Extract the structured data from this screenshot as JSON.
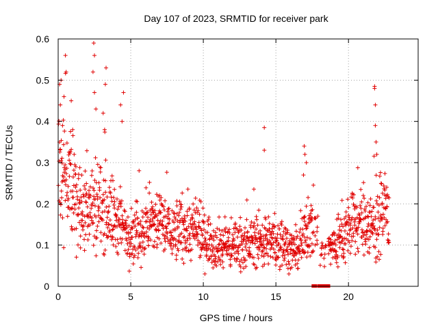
{
  "chart_data": {
    "type": "scatter",
    "title": "Day 107 of 2023, SRMTID for receiver park",
    "xlabel": "GPS time / hours",
    "ylabel": "SRMTID / TECUs",
    "xlim": [
      0,
      24.8
    ],
    "ylim": [
      0,
      0.6
    ],
    "x_ticks": [
      0,
      5,
      10,
      15,
      20
    ],
    "x_tick_labels": [
      "0",
      "5",
      "10",
      "15",
      "20"
    ],
    "y_ticks": [
      0,
      0.1,
      0.2,
      0.3,
      0.4,
      0.5,
      0.6
    ],
    "y_tick_labels": [
      "0",
      "0.1",
      "0.2",
      "0.3",
      "0.4",
      "0.5",
      "0.6"
    ],
    "grid": true,
    "marker": "plus",
    "color": "#e00000",
    "series": [
      {
        "name": "SRMTID",
        "trend": [
          [
            0.0,
            0.3
          ],
          [
            0.3,
            0.27
          ],
          [
            0.7,
            0.26
          ],
          [
            1.0,
            0.23
          ],
          [
            1.5,
            0.2
          ],
          [
            2.0,
            0.19
          ],
          [
            2.5,
            0.2
          ],
          [
            3.0,
            0.2
          ],
          [
            3.5,
            0.18
          ],
          [
            4.0,
            0.16
          ],
          [
            4.5,
            0.14
          ],
          [
            5.0,
            0.13
          ],
          [
            5.5,
            0.13
          ],
          [
            6.0,
            0.14
          ],
          [
            6.5,
            0.15
          ],
          [
            7.0,
            0.16
          ],
          [
            7.5,
            0.14
          ],
          [
            8.0,
            0.13
          ],
          [
            8.5,
            0.14
          ],
          [
            9.0,
            0.14
          ],
          [
            9.5,
            0.13
          ],
          [
            10.0,
            0.12
          ],
          [
            10.5,
            0.11
          ],
          [
            11.0,
            0.1
          ],
          [
            11.5,
            0.1
          ],
          [
            12.0,
            0.1
          ],
          [
            12.5,
            0.11
          ],
          [
            13.0,
            0.1
          ],
          [
            13.5,
            0.11
          ],
          [
            14.0,
            0.11
          ],
          [
            14.5,
            0.11
          ],
          [
            15.0,
            0.1
          ],
          [
            15.5,
            0.11
          ],
          [
            16.0,
            0.09
          ],
          [
            16.5,
            0.08
          ],
          [
            17.0,
            0.12
          ],
          [
            17.3,
            0.15
          ],
          [
            17.7,
            0.14
          ],
          [
            18.0,
            0.1
          ],
          [
            18.5,
            0.09
          ],
          [
            19.0,
            0.1
          ],
          [
            19.5,
            0.12
          ],
          [
            20.0,
            0.14
          ],
          [
            20.5,
            0.15
          ],
          [
            21.0,
            0.16
          ],
          [
            21.5,
            0.15
          ],
          [
            22.0,
            0.16
          ],
          [
            22.5,
            0.17
          ],
          [
            22.8,
            0.18
          ]
        ],
        "outliers": [
          [
            0.1,
            0.49
          ],
          [
            0.2,
            0.5
          ],
          [
            0.15,
            0.44
          ],
          [
            0.5,
            0.56
          ],
          [
            0.55,
            0.52
          ],
          [
            0.4,
            0.46
          ],
          [
            0.3,
            0.39
          ],
          [
            0.9,
            0.45
          ],
          [
            1.0,
            0.38
          ],
          [
            1.1,
            0.32
          ],
          [
            2.45,
            0.59
          ],
          [
            2.5,
            0.56
          ],
          [
            2.4,
            0.52
          ],
          [
            2.5,
            0.47
          ],
          [
            2.6,
            0.43
          ],
          [
            3.3,
            0.53
          ],
          [
            3.25,
            0.49
          ],
          [
            3.1,
            0.42
          ],
          [
            3.2,
            0.38
          ],
          [
            4.3,
            0.44
          ],
          [
            4.5,
            0.47
          ],
          [
            4.4,
            0.4
          ],
          [
            14.2,
            0.385
          ],
          [
            14.2,
            0.33
          ],
          [
            16.95,
            0.34
          ],
          [
            17.0,
            0.32
          ],
          [
            17.1,
            0.3
          ],
          [
            16.9,
            0.27
          ],
          [
            21.8,
            0.485
          ],
          [
            21.8,
            0.48
          ],
          [
            21.85,
            0.44
          ],
          [
            21.85,
            0.39
          ],
          [
            21.9,
            0.35
          ],
          [
            21.95,
            0.32
          ]
        ],
        "zero_values": [
          [
            17.6,
            0
          ],
          [
            17.7,
            0
          ],
          [
            18.0,
            0
          ],
          [
            18.1,
            0
          ],
          [
            18.3,
            0
          ],
          [
            18.5,
            0
          ],
          [
            18.6,
            0
          ]
        ]
      }
    ]
  }
}
